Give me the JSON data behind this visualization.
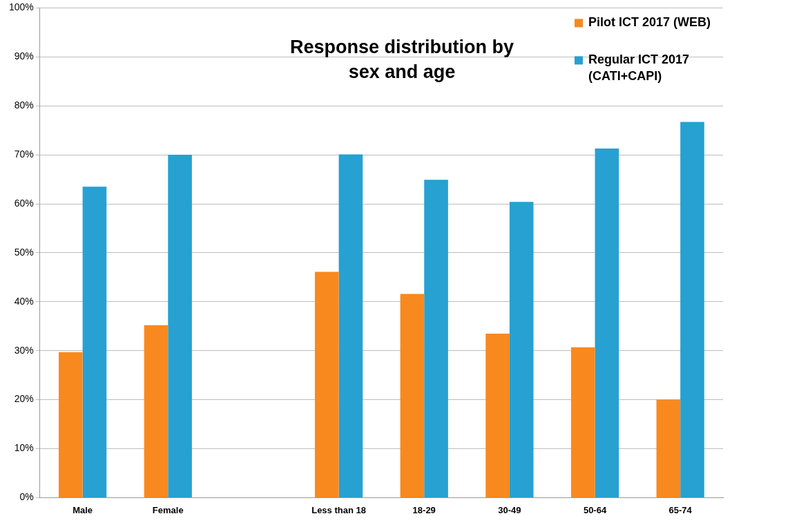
{
  "chart_data": {
    "type": "bar",
    "title": "Response distribution by sex and age",
    "categories": [
      "Male",
      "Female",
      null,
      "Less than 18",
      "18-29",
      "30-49",
      "50-64",
      "65-74"
    ],
    "series": [
      {
        "name": "Pilot ICT 2017 (WEB)",
        "color": "#f8891f",
        "values": [
          29.7,
          35.2,
          null,
          46.1,
          41.6,
          33.5,
          30.7,
          20.0
        ]
      },
      {
        "name": "Regular ICT 2017 (CATI+CAPI)",
        "color": "#26a1d2",
        "values": [
          63.5,
          70.0,
          null,
          70.1,
          64.9,
          60.4,
          71.3,
          76.7
        ]
      }
    ],
    "ylim": [
      0,
      100
    ],
    "yticks": [
      {
        "value": 0,
        "label": "0%"
      },
      {
        "value": 10,
        "label": "10%"
      },
      {
        "value": 20,
        "label": "20%"
      },
      {
        "value": 30,
        "label": "30%"
      },
      {
        "value": 40,
        "label": "40%"
      },
      {
        "value": 50,
        "label": "50%"
      },
      {
        "value": 60,
        "label": "60%"
      },
      {
        "value": 70,
        "label": "70%"
      },
      {
        "value": 80,
        "label": "80%"
      },
      {
        "value": 90,
        "label": "90%"
      },
      {
        "value": 100,
        "label": "100%"
      }
    ],
    "grid": "y",
    "legend": "top right"
  }
}
